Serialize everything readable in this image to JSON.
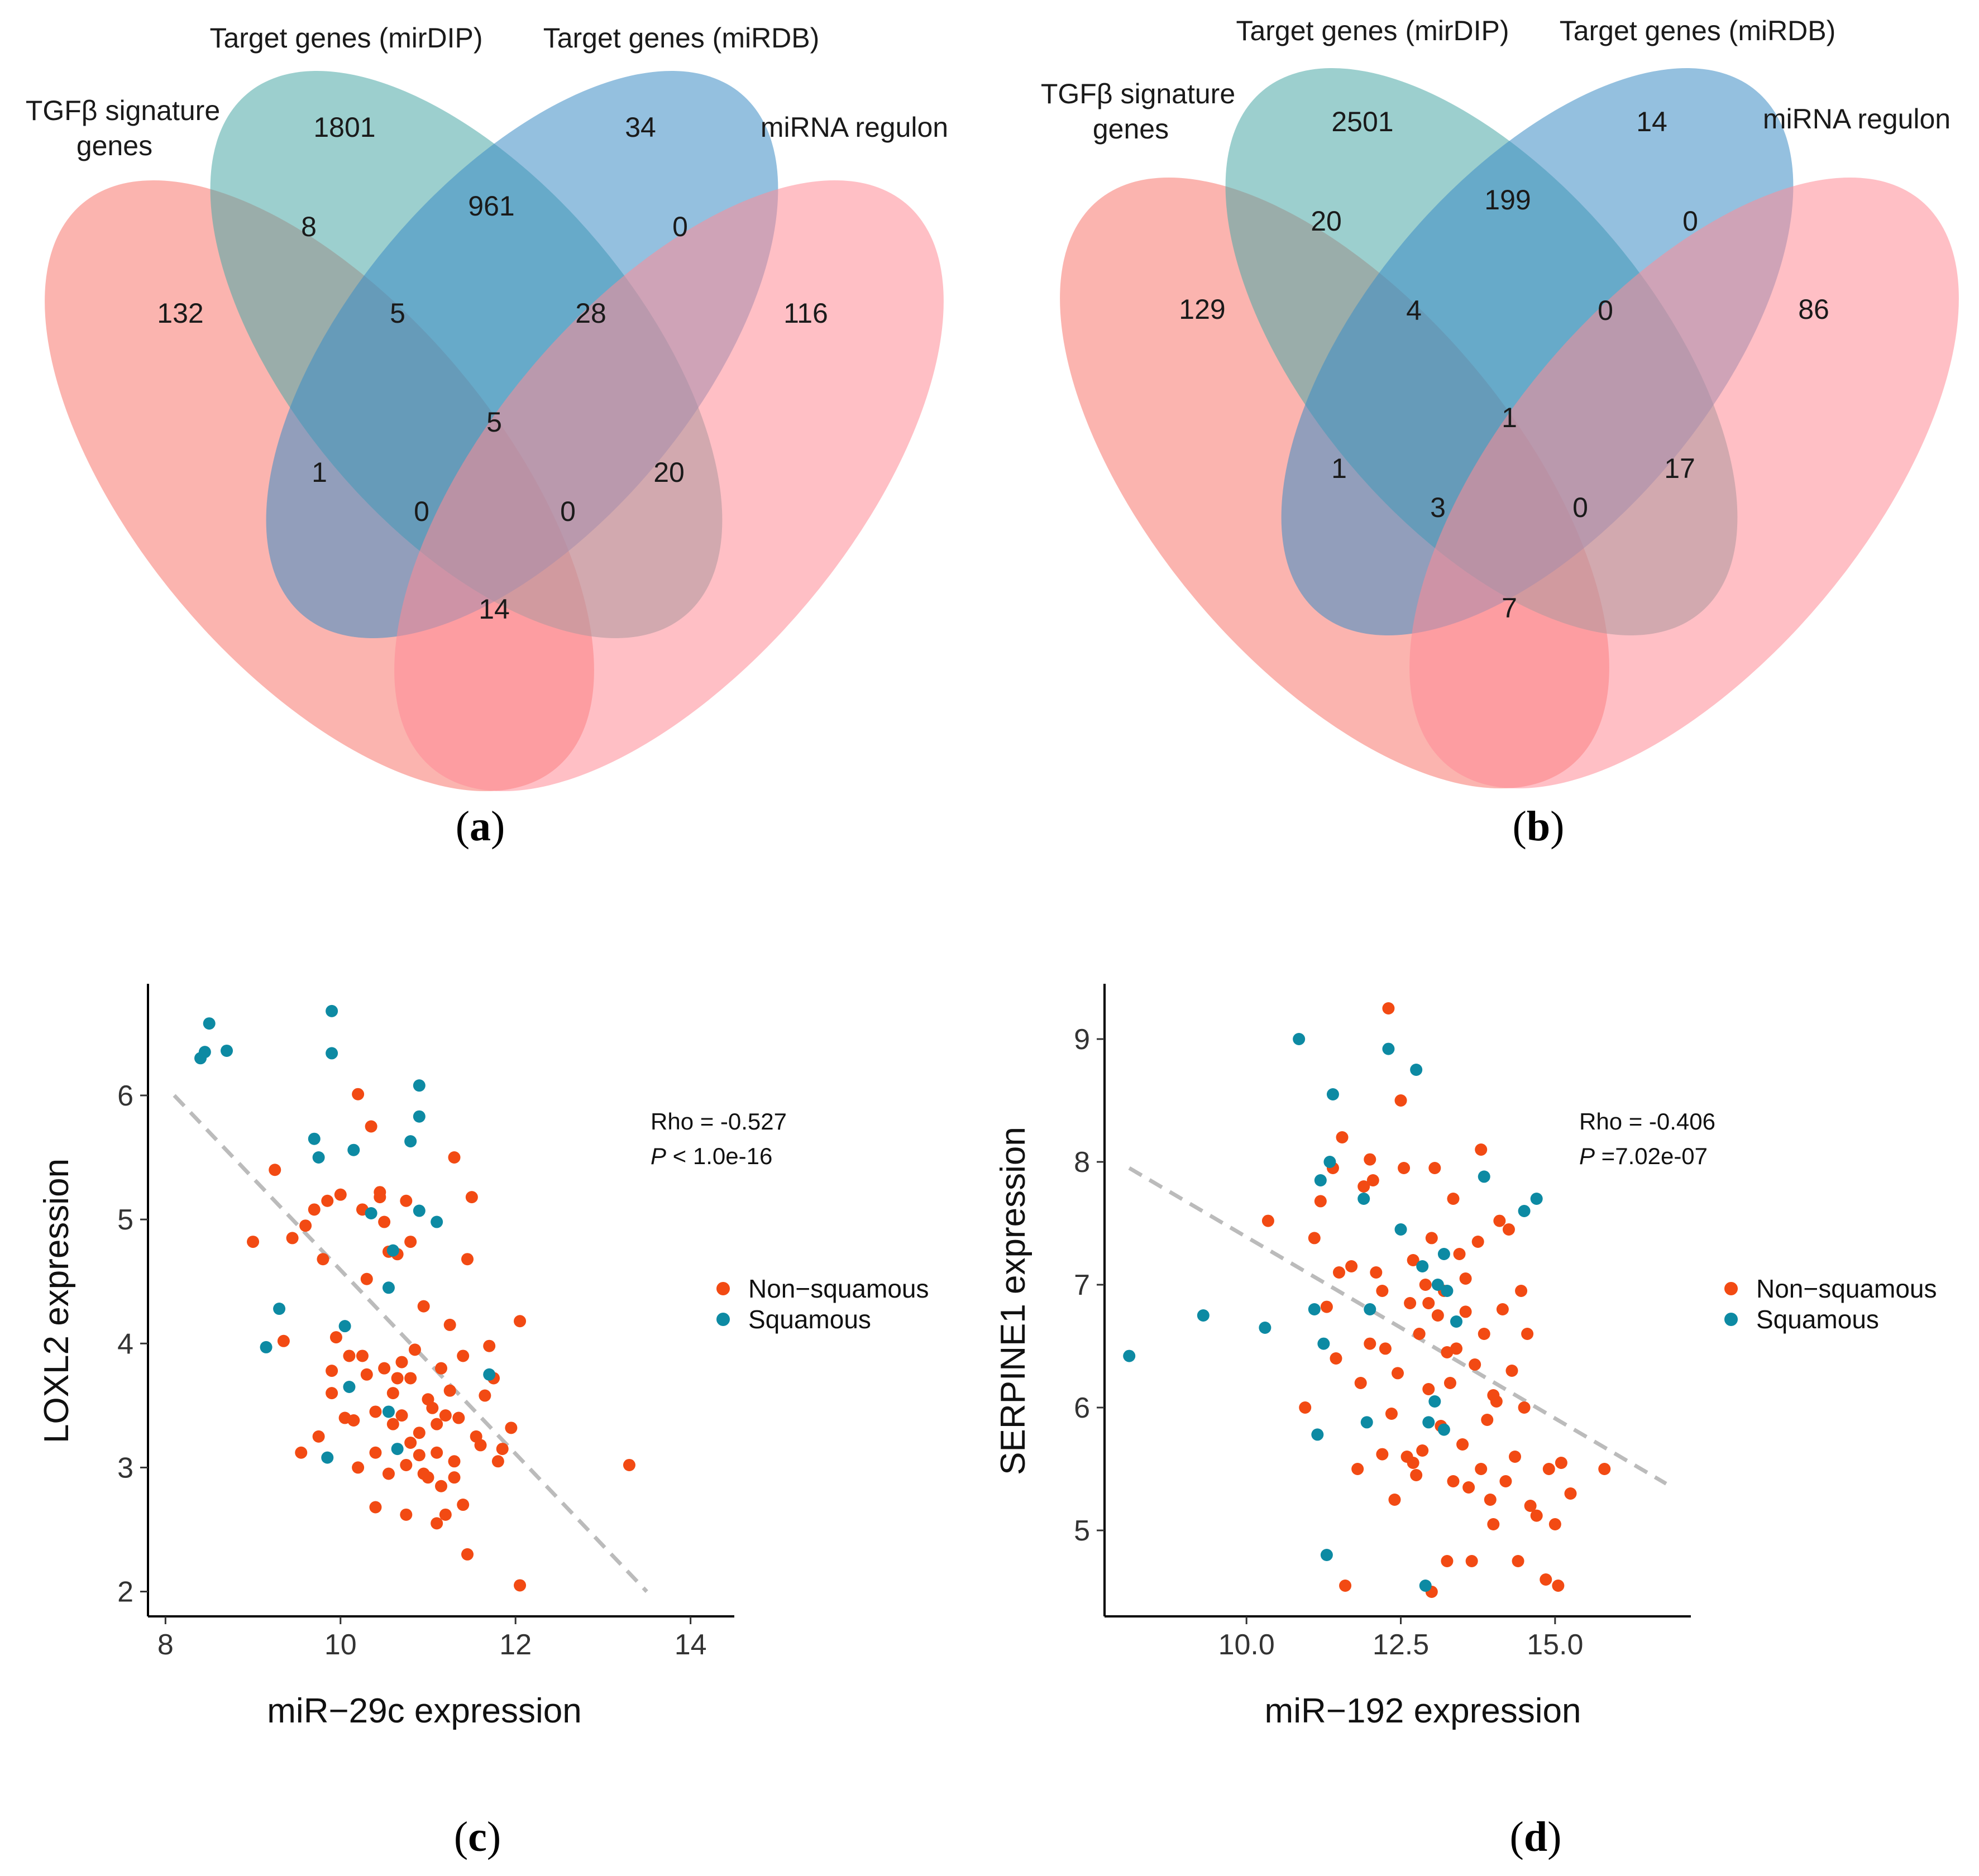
{
  "panels": {
    "a": "a",
    "b": "b",
    "c": "c",
    "d": "d"
  },
  "venn_sets": [
    "TGFβ signature genes",
    "Target genes (mirDIP)",
    "Target genes (miRDB)",
    "miRNA regulon"
  ],
  "venn_label_lines": {
    "tgfb_line1": "TGFβ signature",
    "tgfb_line2": "genes",
    "mirdip": "Target genes (mirDIP)",
    "mirdb": "Target genes (miRDB)",
    "regulon": "miRNA regulon"
  },
  "colors": {
    "tgfb": "#f8766d",
    "mirdip": "#4aa7a5",
    "mirdb": "#3d8cc4",
    "regulon": "#ff8a96",
    "non_squamous": "#f24a13",
    "squamous": "#0d8aa3",
    "trend": "#bbbbbb"
  },
  "chart_data": [
    {
      "type": "venn",
      "panel": "a",
      "sets": [
        "TGFβ signature genes",
        "Target genes (mirDIP)",
        "Target genes (miRDB)",
        "miRNA regulon"
      ],
      "regions": {
        "A": 132,
        "B": 1801,
        "C": 34,
        "D": 116,
        "AB": 8,
        "BC": 961,
        "CD": 0,
        "AC": 1,
        "BD": 20,
        "AD": 14,
        "ABC": 5,
        "BCD": 28,
        "ACD": 0,
        "ABD": 0,
        "ABCD": 5
      }
    },
    {
      "type": "venn",
      "panel": "b",
      "sets": [
        "TGFβ signature genes",
        "Target genes (mirDIP)",
        "Target genes (miRDB)",
        "miRNA regulon"
      ],
      "regions": {
        "A": 129,
        "B": 2501,
        "C": 14,
        "D": 86,
        "AB": 20,
        "BC": 199,
        "CD": 0,
        "AC": 1,
        "BD": 17,
        "AD": 7,
        "ABC": 4,
        "BCD": 0,
        "ACD": 3,
        "ABD": 0,
        "ABCD": 1
      }
    },
    {
      "type": "scatter",
      "panel": "c",
      "xlabel": "miR−29c expression",
      "ylabel": "LOXL2 expression",
      "xlim": [
        7.8,
        14.5
      ],
      "ylim": [
        1.8,
        6.9
      ],
      "xticks": [
        "8",
        "10",
        "12",
        "14"
      ],
      "yticks": [
        "2",
        "3",
        "4",
        "5",
        "6"
      ],
      "stat_rho": "Rho = -0.527",
      "stat_p_label": "P",
      "stat_p_value": " < 1.0e-16",
      "legend": [
        "Non−squamous",
        "Squamous"
      ],
      "trend": {
        "x": [
          8.1,
          13.5
        ],
        "y": [
          6.0,
          2.0
        ]
      },
      "series": [
        {
          "name": "Non−squamous",
          "points": [
            [
              9.0,
              4.82
            ],
            [
              9.25,
              5.4
            ],
            [
              9.35,
              4.02
            ],
            [
              9.45,
              4.85
            ],
            [
              9.6,
              4.95
            ],
            [
              9.7,
              5.08
            ],
            [
              9.75,
              3.25
            ],
            [
              9.8,
              4.68
            ],
            [
              9.85,
              5.15
            ],
            [
              9.9,
              3.78
            ],
            [
              9.9,
              3.6
            ],
            [
              9.95,
              4.05
            ],
            [
              10.0,
              5.2
            ],
            [
              10.05,
              3.4
            ],
            [
              10.1,
              3.9
            ],
            [
              10.15,
              3.38
            ],
            [
              10.2,
              6.01
            ],
            [
              10.25,
              5.08
            ],
            [
              10.3,
              4.52
            ],
            [
              10.3,
              3.75
            ],
            [
              10.4,
              3.45
            ],
            [
              10.4,
              3.12
            ],
            [
              10.45,
              5.22
            ],
            [
              10.5,
              4.98
            ],
            [
              10.5,
              3.8
            ],
            [
              10.55,
              4.74
            ],
            [
              10.6,
              3.6
            ],
            [
              10.6,
              3.35
            ],
            [
              10.65,
              4.72
            ],
            [
              10.7,
              3.85
            ],
            [
              10.7,
              3.42
            ],
            [
              10.75,
              3.02
            ],
            [
              10.75,
              2.62
            ],
            [
              10.8,
              4.82
            ],
            [
              10.8,
              3.72
            ],
            [
              10.85,
              3.95
            ],
            [
              10.9,
              3.28
            ],
            [
              10.9,
              3.1
            ],
            [
              10.95,
              4.3
            ],
            [
              11.0,
              3.55
            ],
            [
              11.0,
              2.92
            ],
            [
              11.05,
              3.48
            ],
            [
              11.1,
              3.35
            ],
            [
              11.1,
              3.12
            ],
            [
              11.15,
              3.8
            ],
            [
              11.2,
              3.42
            ],
            [
              11.2,
              2.62
            ],
            [
              11.25,
              4.15
            ],
            [
              11.3,
              3.05
            ],
            [
              11.35,
              3.4
            ],
            [
              11.4,
              3.9
            ],
            [
              11.4,
              2.7
            ],
            [
              11.45,
              4.68
            ],
            [
              11.45,
              2.3
            ],
            [
              11.5,
              5.18
            ],
            [
              11.55,
              3.25
            ],
            [
              11.6,
              3.18
            ],
            [
              11.65,
              3.58
            ],
            [
              11.7,
              3.98
            ],
            [
              11.75,
              3.72
            ],
            [
              11.8,
              3.05
            ],
            [
              11.85,
              3.15
            ],
            [
              11.95,
              3.32
            ],
            [
              12.05,
              4.18
            ],
            [
              12.05,
              2.05
            ],
            [
              13.3,
              3.02
            ],
            [
              10.25,
              3.9
            ],
            [
              10.55,
              2.95
            ],
            [
              10.95,
              2.95
            ],
            [
              11.3,
              2.92
            ],
            [
              10.4,
              2.68
            ],
            [
              11.1,
              2.55
            ],
            [
              10.8,
              3.2
            ],
            [
              10.35,
              5.75
            ],
            [
              11.3,
              5.5
            ],
            [
              9.55,
              3.12
            ],
            [
              10.2,
              3.0
            ],
            [
              10.65,
              3.72
            ],
            [
              11.25,
              3.62
            ],
            [
              11.15,
              2.85
            ],
            [
              10.45,
              5.18
            ],
            [
              10.75,
              5.15
            ]
          ]
        },
        {
          "name": "Squamous",
          "points": [
            [
              8.4,
              6.3
            ],
            [
              8.45,
              6.35
            ],
            [
              8.5,
              6.58
            ],
            [
              8.7,
              6.36
            ],
            [
              9.15,
              3.97
            ],
            [
              9.3,
              4.28
            ],
            [
              9.7,
              5.65
            ],
            [
              9.75,
              5.5
            ],
            [
              9.85,
              3.08
            ],
            [
              9.9,
              6.68
            ],
            [
              9.9,
              6.34
            ],
            [
              10.05,
              4.14
            ],
            [
              10.1,
              3.65
            ],
            [
              10.15,
              5.56
            ],
            [
              10.35,
              5.05
            ],
            [
              10.55,
              4.45
            ],
            [
              10.6,
              4.75
            ],
            [
              10.65,
              3.15
            ],
            [
              10.8,
              5.63
            ],
            [
              10.9,
              6.08
            ],
            [
              10.9,
              5.83
            ],
            [
              10.9,
              5.07
            ],
            [
              11.1,
              4.98
            ],
            [
              11.7,
              3.75
            ],
            [
              10.55,
              3.45
            ]
          ]
        }
      ]
    },
    {
      "type": "scatter",
      "panel": "d",
      "xlabel": "miR−192 expression",
      "ylabel": "SERPINE1 expression",
      "xlim": [
        7.7,
        17.2
      ],
      "ylim": [
        4.3,
        9.45
      ],
      "xticks": [
        "10.0",
        "12.5",
        "15.0"
      ],
      "yticks": [
        "5",
        "6",
        "7",
        "8",
        "9"
      ],
      "stat_rho": "Rho = -0.406",
      "stat_p_label": "P",
      "stat_p_value": " =7.02e-07",
      "legend": [
        "Non−squamous",
        "Squamous"
      ],
      "trend": {
        "x": [
          8.1,
          16.8
        ],
        "y": [
          7.95,
          5.38
        ]
      },
      "series": [
        {
          "name": "Non−squamous",
          "points": [
            [
              10.35,
              7.52
            ],
            [
              10.95,
              6.0
            ],
            [
              11.1,
              7.38
            ],
            [
              11.2,
              7.68
            ],
            [
              11.3,
              6.82
            ],
            [
              11.4,
              7.95
            ],
            [
              11.5,
              7.1
            ],
            [
              11.6,
              4.55
            ],
            [
              11.7,
              7.15
            ],
            [
              11.8,
              5.5
            ],
            [
              11.85,
              6.2
            ],
            [
              11.9,
              7.8
            ],
            [
              12.0,
              8.02
            ],
            [
              12.0,
              6.52
            ],
            [
              12.1,
              7.1
            ],
            [
              12.2,
              5.62
            ],
            [
              12.25,
              6.48
            ],
            [
              12.3,
              9.25
            ],
            [
              12.35,
              5.95
            ],
            [
              12.45,
              6.28
            ],
            [
              12.5,
              8.5
            ],
            [
              12.55,
              7.95
            ],
            [
              12.6,
              5.6
            ],
            [
              12.65,
              6.85
            ],
            [
              12.7,
              7.2
            ],
            [
              12.75,
              5.45
            ],
            [
              12.8,
              6.6
            ],
            [
              12.85,
              5.65
            ],
            [
              12.9,
              7.0
            ],
            [
              12.95,
              6.15
            ],
            [
              13.0,
              7.38
            ],
            [
              13.0,
              4.5
            ],
            [
              13.05,
              7.95
            ],
            [
              13.1,
              6.75
            ],
            [
              13.15,
              5.85
            ],
            [
              13.2,
              6.95
            ],
            [
              13.25,
              4.75
            ],
            [
              13.3,
              6.2
            ],
            [
              13.35,
              5.4
            ],
            [
              13.4,
              6.48
            ],
            [
              13.45,
              7.25
            ],
            [
              13.5,
              5.7
            ],
            [
              13.55,
              6.78
            ],
            [
              13.6,
              5.35
            ],
            [
              13.65,
              4.75
            ],
            [
              13.7,
              6.35
            ],
            [
              13.75,
              7.35
            ],
            [
              13.8,
              5.5
            ],
            [
              13.85,
              6.6
            ],
            [
              13.9,
              5.9
            ],
            [
              13.95,
              5.25
            ],
            [
              14.0,
              5.05
            ],
            [
              14.05,
              6.05
            ],
            [
              14.1,
              7.52
            ],
            [
              14.15,
              6.8
            ],
            [
              14.2,
              5.4
            ],
            [
              14.3,
              6.3
            ],
            [
              14.35,
              5.6
            ],
            [
              14.4,
              4.75
            ],
            [
              14.45,
              6.95
            ],
            [
              14.5,
              6.0
            ],
            [
              14.55,
              6.6
            ],
            [
              14.6,
              5.2
            ],
            [
              14.7,
              5.12
            ],
            [
              14.85,
              4.6
            ],
            [
              14.9,
              5.5
            ],
            [
              15.0,
              5.05
            ],
            [
              15.05,
              4.55
            ],
            [
              15.1,
              5.55
            ],
            [
              15.25,
              5.3
            ],
            [
              15.8,
              5.5
            ],
            [
              12.2,
              6.95
            ],
            [
              12.4,
              5.25
            ],
            [
              11.45,
              6.4
            ],
            [
              12.95,
              6.85
            ],
            [
              13.55,
              7.05
            ],
            [
              14.0,
              6.1
            ],
            [
              13.35,
              7.7
            ],
            [
              11.55,
              8.2
            ],
            [
              12.05,
              7.85
            ],
            [
              13.25,
              6.45
            ],
            [
              12.7,
              5.55
            ],
            [
              13.8,
              8.1
            ],
            [
              14.25,
              7.45
            ]
          ]
        },
        {
          "name": "Squamous",
          "points": [
            [
              8.1,
              6.42
            ],
            [
              9.3,
              6.75
            ],
            [
              10.3,
              6.65
            ],
            [
              10.85,
              9.0
            ],
            [
              11.1,
              6.8
            ],
            [
              11.15,
              5.78
            ],
            [
              11.2,
              7.85
            ],
            [
              11.25,
              6.52
            ],
            [
              11.3,
              4.8
            ],
            [
              11.35,
              8.0
            ],
            [
              11.4,
              8.55
            ],
            [
              11.9,
              7.7
            ],
            [
              12.0,
              6.8
            ],
            [
              12.3,
              8.92
            ],
            [
              12.5,
              7.45
            ],
            [
              12.75,
              8.75
            ],
            [
              12.95,
              5.88
            ],
            [
              13.05,
              6.05
            ],
            [
              13.1,
              7.0
            ],
            [
              13.2,
              7.25
            ],
            [
              13.25,
              6.95
            ],
            [
              13.4,
              6.7
            ],
            [
              13.85,
              7.88
            ],
            [
              14.5,
              7.6
            ],
            [
              14.7,
              7.7
            ],
            [
              11.95,
              5.88
            ],
            [
              12.9,
              4.55
            ],
            [
              13.2,
              5.82
            ],
            [
              12.85,
              7.15
            ]
          ]
        }
      ]
    }
  ]
}
